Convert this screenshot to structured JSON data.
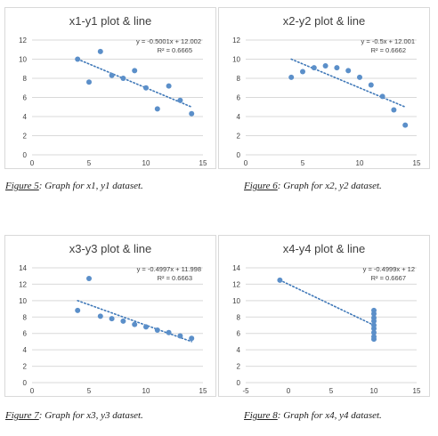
{
  "charts": [
    {
      "chart_data": {
        "type": "scatter",
        "title": "x1-y1 plot & line",
        "equation": "y = -0.5001x + 12.002",
        "r2": "R² = 0.6665",
        "xlim": [
          0,
          15
        ],
        "ylim": [
          0,
          12
        ],
        "xticks": [
          "0",
          "5",
          "10",
          "15"
        ],
        "yticks": [
          "0",
          "2",
          "4",
          "6",
          "8",
          "10",
          "12"
        ],
        "xtick_values": [
          0,
          5,
          10,
          15
        ],
        "ytick_values": [
          0,
          2,
          4,
          6,
          8,
          10,
          12
        ],
        "points": [
          [
            4,
            10
          ],
          [
            5,
            7.6
          ],
          [
            6,
            10.8
          ],
          [
            7,
            8.3
          ],
          [
            8,
            8.0
          ],
          [
            9,
            8.8
          ],
          [
            10,
            7.0
          ],
          [
            11,
            4.8
          ],
          [
            12,
            7.2
          ],
          [
            13,
            5.7
          ],
          [
            14,
            4.3
          ]
        ],
        "trendline": {
          "slope": -0.5001,
          "intercept": 12.002,
          "x_range": [
            4,
            14
          ]
        }
      },
      "caption_ref": "Figure 5",
      "caption_text": ":  Graph for x1, y1 dataset."
    },
    {
      "chart_data": {
        "type": "scatter",
        "title": "x2-y2 plot & line",
        "equation": "y = -0.5x + 12.001",
        "r2": "R² = 0.6662",
        "xlim": [
          0,
          15
        ],
        "ylim": [
          0,
          12
        ],
        "xticks": [
          "0",
          "5",
          "10",
          "15"
        ],
        "yticks": [
          "0",
          "2",
          "4",
          "6",
          "8",
          "10",
          "12"
        ],
        "xtick_values": [
          0,
          5,
          10,
          15
        ],
        "ytick_values": [
          0,
          2,
          4,
          6,
          8,
          10,
          12
        ],
        "points": [
          [
            4,
            8.1
          ],
          [
            5,
            8.7
          ],
          [
            6,
            9.1
          ],
          [
            7,
            9.3
          ],
          [
            8,
            9.1
          ],
          [
            9,
            8.8
          ],
          [
            10,
            8.1
          ],
          [
            11,
            7.3
          ],
          [
            12,
            6.1
          ],
          [
            13,
            4.7
          ],
          [
            14,
            3.1
          ]
        ],
        "trendline": {
          "slope": -0.5,
          "intercept": 12.001,
          "x_range": [
            4,
            14
          ]
        }
      },
      "caption_ref": "Figure 6",
      "caption_text": ":  Graph for x2, y2 dataset."
    },
    {
      "chart_data": {
        "type": "scatter",
        "title": "x3-y3 plot & line",
        "equation": "y = -0.4997x + 11.998",
        "r2": "R² = 0.6663",
        "xlim": [
          0,
          15
        ],
        "ylim": [
          0,
          14
        ],
        "xticks": [
          "0",
          "5",
          "10",
          "15"
        ],
        "yticks": [
          "0",
          "2",
          "4",
          "6",
          "8",
          "10",
          "12",
          "14"
        ],
        "xtick_values": [
          0,
          5,
          10,
          15
        ],
        "ytick_values": [
          0,
          2,
          4,
          6,
          8,
          10,
          12,
          14
        ],
        "points": [
          [
            4,
            8.8
          ],
          [
            5,
            12.7
          ],
          [
            6,
            8.1
          ],
          [
            7,
            7.8
          ],
          [
            8,
            7.5
          ],
          [
            9,
            7.1
          ],
          [
            10,
            6.8
          ],
          [
            11,
            6.4
          ],
          [
            12,
            6.1
          ],
          [
            13,
            5.7
          ],
          [
            14,
            5.4
          ]
        ],
        "trendline": {
          "slope": -0.4997,
          "intercept": 11.998,
          "x_range": [
            4,
            14
          ]
        }
      },
      "caption_ref": "Figure 7",
      "caption_text": ":  Graph for x3, y3 dataset."
    },
    {
      "chart_data": {
        "type": "scatter",
        "title": "x4-y4 plot & line",
        "equation": "y = -0.4999x + 12",
        "r2": "R² = 0.6667",
        "xlim": [
          -5,
          15
        ],
        "ylim": [
          0,
          14
        ],
        "xticks": [
          "-5",
          "0",
          "5",
          "10",
          "15"
        ],
        "yticks": [
          "0",
          "2",
          "4",
          "6",
          "8",
          "10",
          "12",
          "14"
        ],
        "xtick_values": [
          -5,
          0,
          5,
          10,
          15
        ],
        "ytick_values": [
          0,
          2,
          4,
          6,
          8,
          10,
          12,
          14
        ],
        "points": [
          [
            -1,
            12.5
          ],
          [
            10,
            8.8
          ],
          [
            10,
            8.4
          ],
          [
            10,
            7.9
          ],
          [
            10,
            7.5
          ],
          [
            10,
            7.0
          ],
          [
            10,
            6.6
          ],
          [
            10,
            6.1
          ],
          [
            10,
            5.6
          ],
          [
            10,
            5.3
          ]
        ],
        "trendline": {
          "slope": -0.4999,
          "intercept": 12,
          "x_range": [
            -1,
            10
          ]
        }
      },
      "caption_ref": "Figure 8",
      "caption_text": ":  Graph for x4, y4 dataset."
    }
  ],
  "colors": {
    "marker": "#5b8fc9",
    "trend": "#3f78b8",
    "axis": "#d9d9d9",
    "text": "#404040"
  }
}
